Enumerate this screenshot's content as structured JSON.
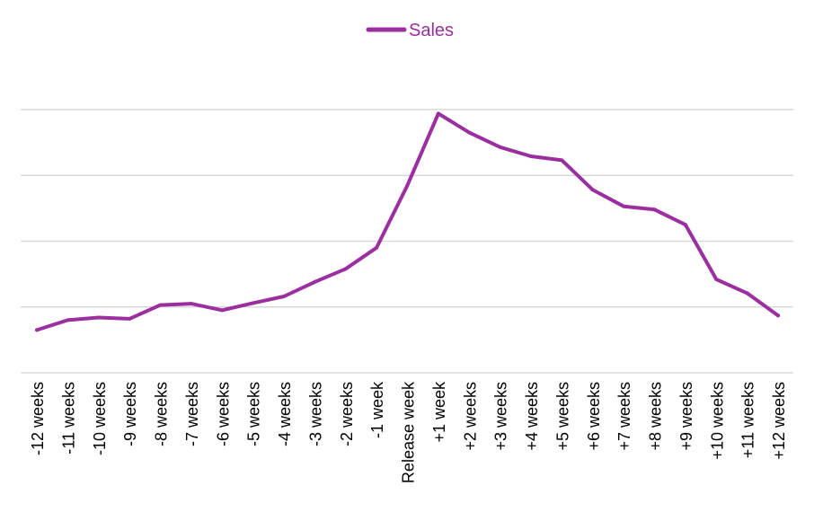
{
  "chart_data": {
    "type": "line",
    "title": "",
    "xlabel": "",
    "ylabel": "",
    "legend_position": "top-center",
    "grid": true,
    "y_axis_labels_shown": false,
    "ylim": [
      0,
      4
    ],
    "y_gridlines": [
      1,
      2,
      3,
      4
    ],
    "categories": [
      "-12 weeks",
      "-11 weeks",
      "-10 weeks",
      "-9 weeks",
      "-8 weeks",
      "-7 weeks",
      "-6 weeks",
      "-5 weeks",
      "-4 weeks",
      "-3 weeks",
      "-2 weeks",
      "-1 week",
      "Release week",
      "+1 week",
      "+2 weeks",
      "+3 weeks",
      "+4 weeks",
      "+5 weeks",
      "+6 weeks",
      "+7 weeks",
      "+8 weeks",
      "+9 weeks",
      "+10 weeks",
      "+11 weeks",
      "+12 weeks"
    ],
    "series": [
      {
        "name": "Sales",
        "color": "#9b2fa0",
        "values": [
          0.65,
          0.8,
          0.84,
          0.82,
          1.03,
          1.05,
          0.95,
          1.06,
          1.16,
          1.38,
          1.58,
          1.9,
          2.85,
          3.94,
          3.65,
          3.43,
          3.29,
          3.23,
          2.78,
          2.53,
          2.48,
          2.25,
          1.42,
          1.21,
          0.87
        ]
      }
    ]
  }
}
